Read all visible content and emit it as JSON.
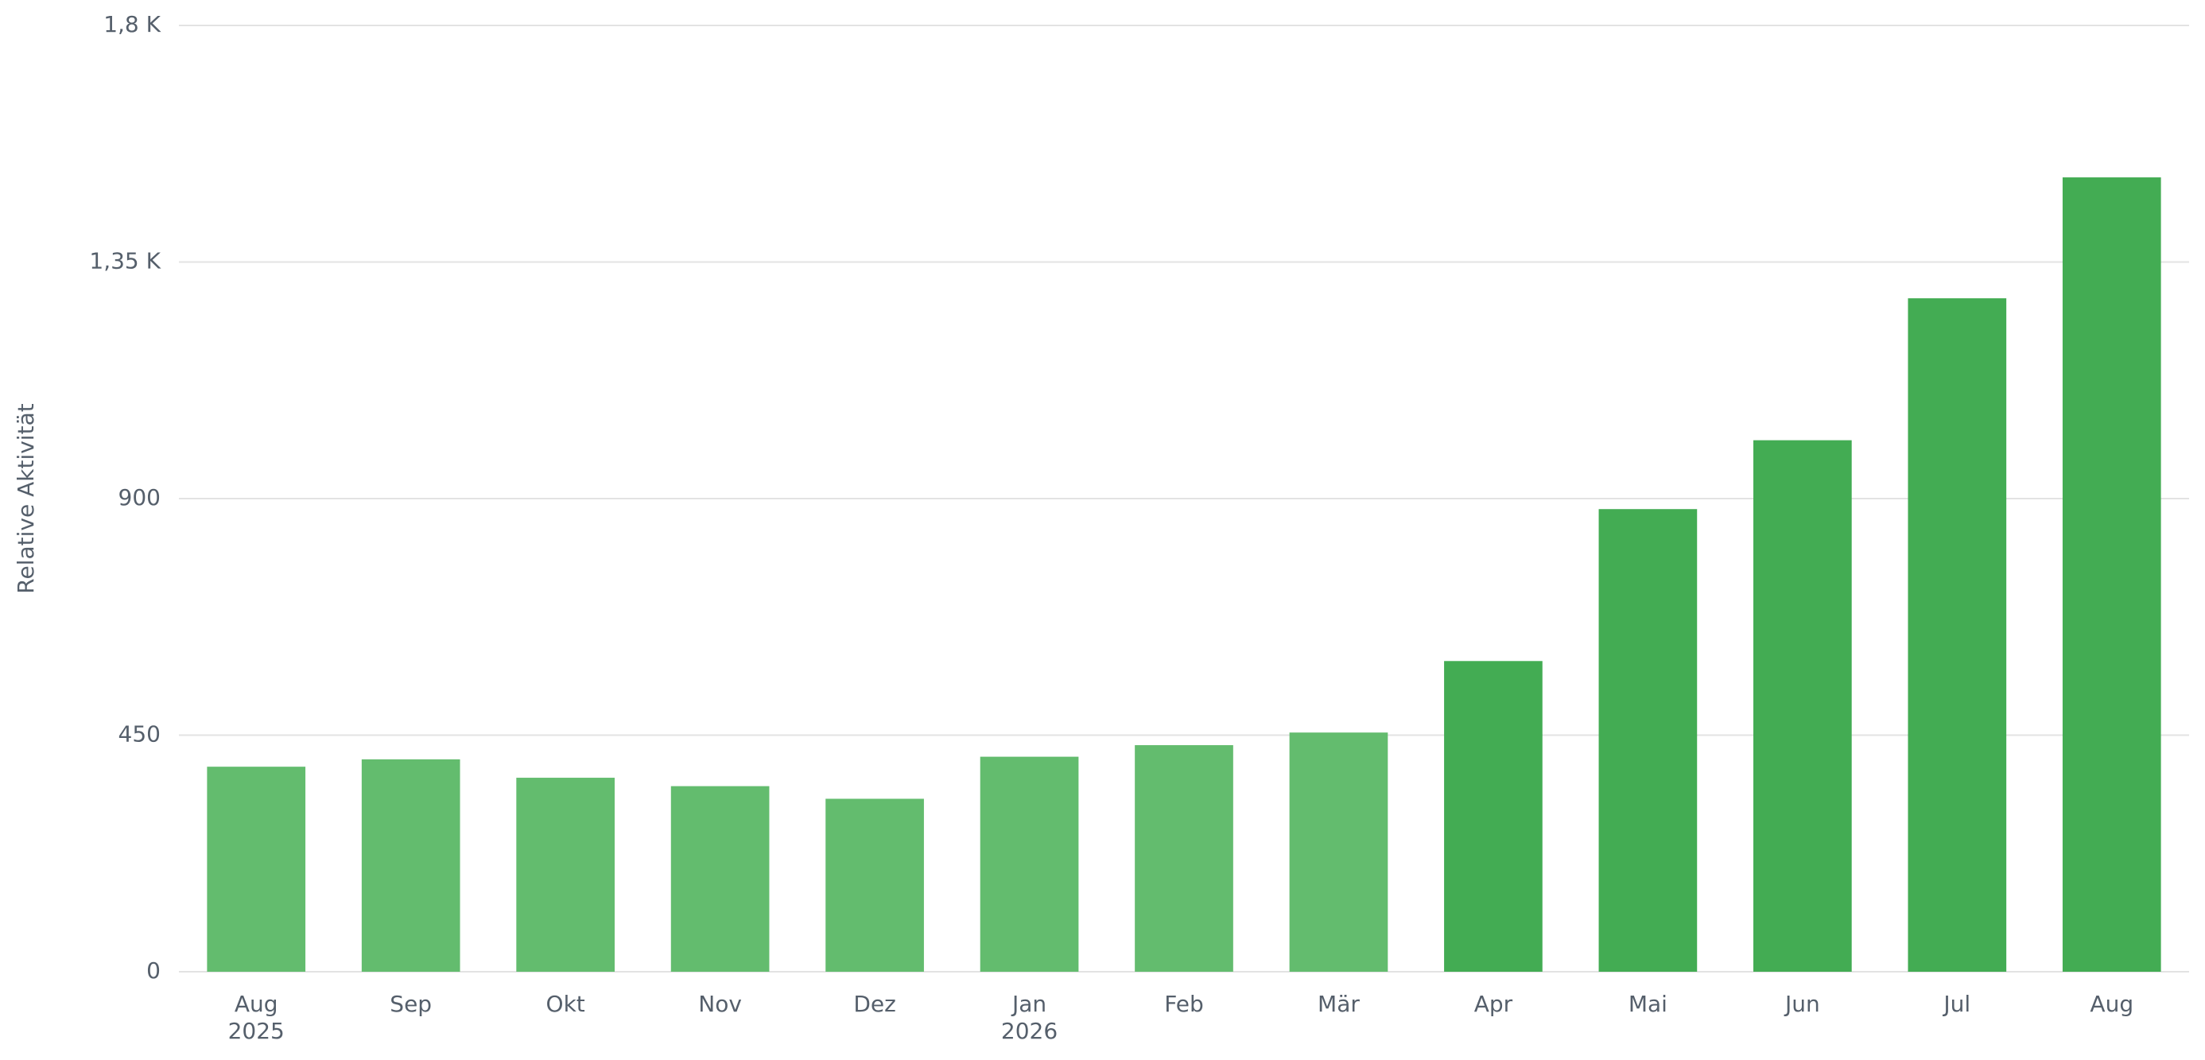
{
  "chart_data": {
    "type": "bar",
    "y_label": "Relative Aktivität",
    "categories": [
      "Aug",
      "Sep",
      "Okt",
      "Nov",
      "Dez",
      "Jan",
      "Feb",
      "Mär",
      "Apr",
      "Mai",
      "Jun",
      "Jul",
      "Aug"
    ],
    "x_sublabels": [
      "2025",
      null,
      null,
      null,
      null,
      "2026",
      null,
      null,
      null,
      null,
      null,
      null,
      null
    ],
    "values": [
      390,
      404,
      369,
      353,
      329,
      409,
      431,
      455,
      591,
      880,
      1011,
      1281,
      1511
    ],
    "colors": [
      "#63bc6e",
      "#63bc6e",
      "#63bc6e",
      "#63bc6e",
      "#63bc6e",
      "#63bc6e",
      "#63bc6e",
      "#63bc6e",
      "#43ac53",
      "#43ac53",
      "#43ac53",
      "#43ac53",
      "#43ac53"
    ],
    "ylim": [
      0,
      1800
    ],
    "yticks": [
      0,
      450,
      900,
      {
        "value": 1350,
        "label": "1,35 K"
      },
      {
        "value": 1800,
        "label": "1,8 K"
      }
    ],
    "grid": true
  }
}
